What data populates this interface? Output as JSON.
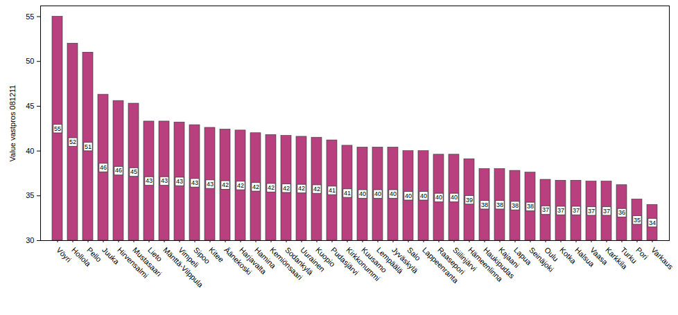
{
  "chart_data": {
    "type": "bar",
    "categories": [
      "Vöyri",
      "Hollola",
      "Pello",
      "Juuka",
      "Hirvensalmi",
      "Mustasaari",
      "Lieto",
      "Mänttä-Vilppula",
      "Vimpeli",
      "Sipoo",
      "Kitee",
      "Äänekoski",
      "Harjavalta",
      "Hamina",
      "Kemiönsaari",
      "Sodankylä",
      "Uurainen",
      "Kuopio",
      "Pudasjärvi",
      "Kirkkonummi",
      "Kuusamo",
      "Lempäälä",
      "Jyväskylä",
      "Salo",
      "Lappeenranta",
      "Raasepori",
      "Siilinjärvi",
      "Hämeenlinna",
      "Haukipudas",
      "Kajaani",
      "Lapua",
      "Seinäjoki",
      "Oulu",
      "Kotka",
      "Halsua",
      "Vaasa",
      "Karkkila",
      "Turku",
      "Pori",
      "Varkaus"
    ],
    "values": [
      55.0,
      52.0,
      51.0,
      46.3,
      45.6,
      45.3,
      43.3,
      43.3,
      43.2,
      42.9,
      42.6,
      42.4,
      42.3,
      42.0,
      41.8,
      41.7,
      41.6,
      41.5,
      41.2,
      40.6,
      40.4,
      40.4,
      40.4,
      40.0,
      40.0,
      39.6,
      39.6,
      39.1,
      38.0,
      38.0,
      37.8,
      37.6,
      36.8,
      36.7,
      36.7,
      36.6,
      36.6,
      36.2,
      34.6,
      34.0
    ],
    "value_labels": [
      "55",
      "52",
      "51",
      "46",
      "46",
      "45",
      "43",
      "43",
      "43",
      "43",
      "43",
      "42",
      "42",
      "42",
      "42",
      "42",
      "42",
      "42",
      "41",
      "41",
      "40",
      "40",
      "40",
      "40",
      "40",
      "40",
      "40",
      "39",
      "38",
      "38",
      "38",
      "38",
      "37",
      "37",
      "37",
      "37",
      "37",
      "36",
      "35",
      "34"
    ],
    "y_label": "Value vastpros 081211",
    "color": "#b8407f",
    "ylim": [
      30,
      56.2
    ],
    "yticks": [
      30,
      35,
      40,
      45,
      50,
      55
    ],
    "grid": false,
    "data_labels": true
  }
}
